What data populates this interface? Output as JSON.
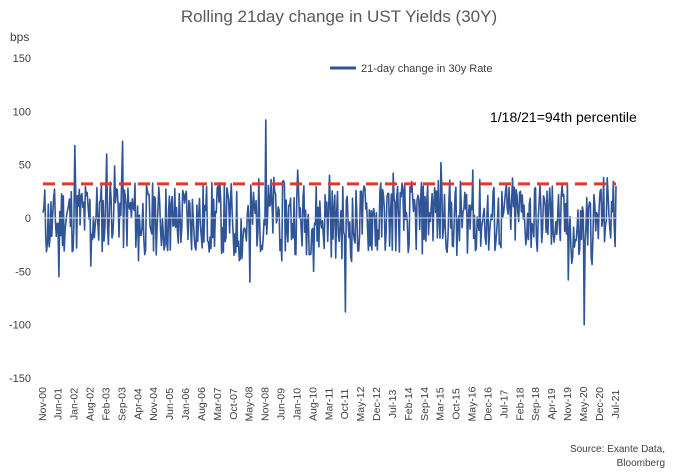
{
  "chart_data": {
    "type": "line",
    "title": "Rolling 21day change in UST Yields (30Y)",
    "ylabel": "bps",
    "xlabel": "",
    "ylim": [
      -150,
      150
    ],
    "yticks": [
      150,
      100,
      50,
      0,
      -50,
      -100,
      -150
    ],
    "grid": false,
    "legend_position": "top-center",
    "categories": [
      "Nov-00",
      "Jun-01",
      "Jan-02",
      "Aug-02",
      "Feb-03",
      "Sep-03",
      "Apr-04",
      "Nov-04",
      "Jun-05",
      "Jan-06",
      "Aug-06",
      "Mar-07",
      "Oct-07",
      "May-08",
      "Nov-08",
      "Jun-09",
      "Jan-10",
      "Aug-10",
      "Mar-11",
      "Oct-11",
      "May-12",
      "Dec-12",
      "Jul-13",
      "Feb-14",
      "Sep-14",
      "Mar-15",
      "Oct-15",
      "May-16",
      "Dec-16",
      "Jul-17",
      "Feb-18",
      "Sep-18",
      "Apr-19",
      "Nov-19",
      "May-20",
      "Dec-20",
      "Jul-21"
    ],
    "series": [
      {
        "name": "21-day change in 30y Rate",
        "color": "#2f5597",
        "x": [
          "Nov-00",
          "Jun-01",
          "Jan-02",
          "Aug-02",
          "Feb-03",
          "Sep-03",
          "Apr-04",
          "Nov-04",
          "Jun-05",
          "Jan-06",
          "Aug-06",
          "Mar-07",
          "Oct-07",
          "May-08",
          "Nov-08",
          "Jun-09",
          "Jan-10",
          "Aug-10",
          "Mar-11",
          "Oct-11",
          "May-12",
          "Dec-12",
          "Jul-13",
          "Feb-14",
          "Sep-14",
          "Mar-15",
          "Oct-15",
          "May-16",
          "Dec-16",
          "Jul-17",
          "Feb-18",
          "Sep-18",
          "Apr-19",
          "Nov-19",
          "May-20",
          "Dec-20",
          "Jul-21"
        ],
        "values": [
          5,
          -55,
          68,
          -45,
          60,
          72,
          -40,
          20,
          -30,
          25,
          -28,
          30,
          -35,
          -60,
          92,
          -40,
          45,
          -50,
          40,
          -88,
          25,
          -30,
          42,
          -25,
          20,
          52,
          -35,
          45,
          -30,
          15,
          25,
          -20,
          30,
          -58,
          -100,
          25,
          30
        ]
      },
      {
        "name": "94th percentile",
        "color": "#e8352a",
        "dashed": true,
        "constant": 32
      }
    ],
    "annotations": [
      {
        "text": "1/18/21=94th percentile",
        "position": "top-right"
      }
    ]
  },
  "footer": {
    "source_line1": "Source: Exante Data,",
    "source_line2": "Bloomberg"
  }
}
